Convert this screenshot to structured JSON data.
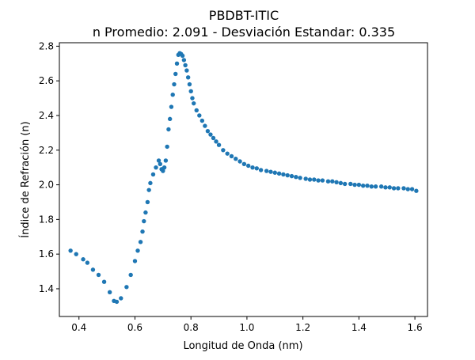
{
  "chart_data": {
    "type": "scatter",
    "title": "PBDBT-ITIC",
    "subtitle": "n Promedio: 2.091 - Desviación Estandar: 0.335",
    "xlabel": "Longitud de Onda (nm)",
    "ylabel": "Índice de Refración (n)",
    "xlim": [
      0.33,
      1.645
    ],
    "ylim": [
      1.24,
      2.82
    ],
    "xticks": [
      0.4,
      0.6,
      0.8,
      1.0,
      1.2,
      1.4,
      1.6
    ],
    "xtick_labels": [
      "0.4",
      "0.6",
      "0.8",
      "1.0",
      "1.2",
      "1.4",
      "1.6"
    ],
    "yticks": [
      1.4,
      1.6,
      1.8,
      2.0,
      2.2,
      2.4,
      2.6,
      2.8
    ],
    "ytick_labels": [
      "1.4",
      "1.6",
      "1.8",
      "2.0",
      "2.2",
      "2.4",
      "2.6",
      "2.8"
    ],
    "grid": false,
    "marker_color": "#1f77b4",
    "series": [
      {
        "x": [
          0.37,
          0.39,
          0.415,
          0.43,
          0.45,
          0.47,
          0.49,
          0.51,
          0.525,
          0.535,
          0.55,
          0.57,
          0.585,
          0.6,
          0.61,
          0.62,
          0.627,
          0.632,
          0.638,
          0.645,
          0.65,
          0.655,
          0.665,
          0.675,
          0.685,
          0.69,
          0.695,
          0.7,
          0.705,
          0.71,
          0.715,
          0.72,
          0.725,
          0.73,
          0.735,
          0.74,
          0.745,
          0.75,
          0.755,
          0.76,
          0.765,
          0.77,
          0.775,
          0.78,
          0.785,
          0.79,
          0.795,
          0.8,
          0.805,
          0.81,
          0.82,
          0.83,
          0.84,
          0.85,
          0.86,
          0.87,
          0.88,
          0.89,
          0.9,
          0.915,
          0.93,
          0.945,
          0.96,
          0.975,
          0.99,
          1.005,
          1.02,
          1.035,
          1.05,
          1.07,
          1.085,
          1.1,
          1.115,
          1.13,
          1.145,
          1.16,
          1.175,
          1.19,
          1.21,
          1.225,
          1.24,
          1.255,
          1.27,
          1.29,
          1.305,
          1.32,
          1.335,
          1.35,
          1.37,
          1.385,
          1.4,
          1.415,
          1.43,
          1.445,
          1.46,
          1.48,
          1.495,
          1.51,
          1.525,
          1.54,
          1.56,
          1.575,
          1.59,
          1.605
        ],
        "y": [
          1.62,
          1.6,
          1.57,
          1.55,
          1.51,
          1.48,
          1.44,
          1.38,
          1.33,
          1.325,
          1.345,
          1.41,
          1.48,
          1.56,
          1.62,
          1.67,
          1.73,
          1.79,
          1.84,
          1.9,
          1.97,
          2.01,
          2.06,
          2.1,
          2.14,
          2.12,
          2.09,
          2.08,
          2.1,
          2.14,
          2.22,
          2.32,
          2.38,
          2.45,
          2.52,
          2.58,
          2.64,
          2.7,
          2.75,
          2.76,
          2.755,
          2.745,
          2.72,
          2.69,
          2.66,
          2.62,
          2.58,
          2.54,
          2.5,
          2.47,
          2.43,
          2.4,
          2.37,
          2.34,
          2.31,
          2.29,
          2.27,
          2.25,
          2.23,
          2.2,
          2.18,
          2.165,
          2.15,
          2.135,
          2.12,
          2.11,
          2.1,
          2.095,
          2.085,
          2.08,
          2.075,
          2.07,
          2.065,
          2.06,
          2.055,
          2.05,
          2.045,
          2.04,
          2.035,
          2.03,
          2.03,
          2.025,
          2.025,
          2.02,
          2.02,
          2.015,
          2.01,
          2.005,
          2.005,
          2.0,
          2.0,
          1.995,
          1.995,
          1.99,
          1.99,
          1.99,
          1.985,
          1.985,
          1.98,
          1.98,
          1.98,
          1.975,
          1.975,
          1.965
        ]
      }
    ]
  }
}
